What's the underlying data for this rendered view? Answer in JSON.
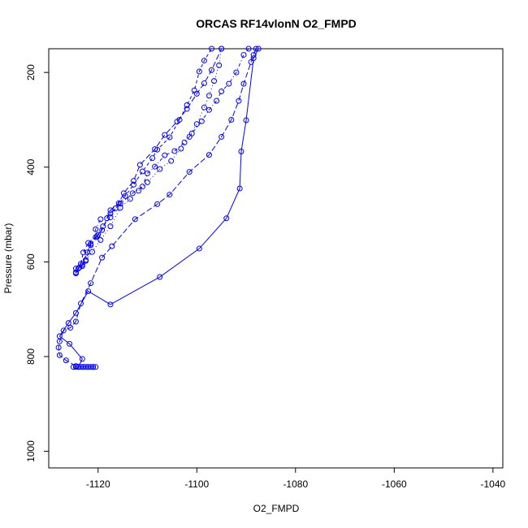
{
  "chart_data": {
    "type": "line",
    "title": "ORCAS RF14vlonN O2_FMPD",
    "xlabel": "O2_FMPD",
    "ylabel": "Pressure (mbar)",
    "xlim": [
      -1130,
      -1038
    ],
    "ylim": [
      1035,
      150
    ],
    "y_reversed": true,
    "x_ticks": [
      -1120,
      -1100,
      -1080,
      -1060,
      -1040
    ],
    "x_tick_labels": [
      "-1120",
      "-1100",
      "-1080",
      "-1060",
      "-1040"
    ],
    "y_ticks": [
      200,
      400,
      600,
      800,
      1000
    ],
    "y_tick_labels": [
      "200",
      "400",
      "600",
      "800",
      "1000"
    ],
    "grid": false,
    "legend": "none",
    "marker": "open-circle",
    "color": "#0000ff",
    "series": [
      {
        "line_style": "solid",
        "points": [
          [
            -1121,
            822
          ],
          [
            -1122,
            822
          ],
          [
            -1123,
            822
          ],
          [
            -1124,
            822
          ],
          [
            -1123.2,
            805
          ],
          [
            -1125.8,
            773
          ],
          [
            -1127.8,
            757
          ],
          [
            -1126,
            729
          ],
          [
            -1124.5,
            708
          ],
          [
            -1122,
            662
          ],
          [
            -1117.5,
            690
          ],
          [
            -1107.5,
            632
          ],
          [
            -1099.5,
            572
          ],
          [
            -1094,
            508
          ],
          [
            -1091.3,
            445
          ],
          [
            -1091,
            367
          ],
          [
            -1090,
            301
          ],
          [
            -1088.5,
            170
          ],
          [
            -1087.5,
            150
          ]
        ]
      },
      {
        "line_style": "longdash",
        "points": [
          [
            -1124.5,
            820
          ],
          [
            -1126.5,
            808
          ],
          [
            -1127.8,
            797
          ],
          [
            -1128,
            781
          ],
          [
            -1127.8,
            768
          ],
          [
            -1127,
            745
          ],
          [
            -1125.6,
            739
          ],
          [
            -1124.5,
            726
          ],
          [
            -1123.5,
            688
          ],
          [
            -1121.5,
            645
          ],
          [
            -1119.2,
            591
          ],
          [
            -1117.2,
            567
          ],
          [
            -1112.5,
            510
          ],
          [
            -1108,
            478
          ],
          [
            -1105.5,
            458
          ],
          [
            -1101.5,
            410
          ],
          [
            -1097.5,
            374
          ],
          [
            -1095,
            336
          ],
          [
            -1093,
            300
          ],
          [
            -1091.5,
            260
          ],
          [
            -1090.5,
            224
          ],
          [
            -1089,
            178
          ],
          [
            -1088.5,
            163
          ],
          [
            -1088,
            150
          ]
        ]
      },
      {
        "line_style": "dashdot",
        "points": [
          [
            -1124.5,
            624
          ],
          [
            -1123.8,
            612
          ],
          [
            -1122.5,
            598
          ],
          [
            -1121.5,
            565
          ],
          [
            -1120.5,
            548
          ],
          [
            -1120.5,
            531
          ],
          [
            -1119.5,
            510
          ],
          [
            -1117.5,
            498
          ],
          [
            -1115.5,
            477
          ],
          [
            -1113,
            455
          ],
          [
            -1111,
            441
          ],
          [
            -1110,
            413
          ],
          [
            -1108.5,
            399
          ],
          [
            -1106.5,
            375
          ],
          [
            -1104.5,
            366
          ],
          [
            -1102.5,
            348
          ],
          [
            -1101,
            329
          ],
          [
            -1099,
            303
          ],
          [
            -1097.5,
            279
          ],
          [
            -1096,
            260
          ],
          [
            -1095,
            240
          ],
          [
            -1093.5,
            224
          ],
          [
            -1092,
            200
          ],
          [
            -1090.5,
            163
          ],
          [
            -1089.5,
            150
          ]
        ]
      },
      {
        "line_style": "dotted",
        "points": [
          [
            -1124.5,
            622
          ],
          [
            -1123.2,
            609
          ],
          [
            -1122.5,
            596
          ],
          [
            -1121.2,
            579
          ],
          [
            -1119.5,
            554
          ],
          [
            -1117.5,
            525
          ],
          [
            -1115.5,
            486
          ],
          [
            -1113.5,
            467
          ],
          [
            -1111.8,
            450
          ],
          [
            -1110,
            432
          ],
          [
            -1107.5,
            404
          ],
          [
            -1105.2,
            387
          ],
          [
            -1103.2,
            361
          ],
          [
            -1101.5,
            336
          ],
          [
            -1100,
            309
          ],
          [
            -1098.5,
            274
          ],
          [
            -1097.5,
            249
          ],
          [
            -1096.5,
            218
          ],
          [
            -1095.5,
            185
          ],
          [
            -1095,
            150
          ]
        ]
      },
      {
        "line_style": "dashed",
        "points": [
          [
            -1124.5,
            624
          ],
          [
            -1124,
            614
          ],
          [
            -1123.5,
            604
          ],
          [
            -1123,
            580
          ],
          [
            -1122,
            560
          ],
          [
            -1120,
            543
          ],
          [
            -1119,
            525
          ],
          [
            -1117.5,
            506
          ],
          [
            -1116.5,
            487
          ],
          [
            -1114.5,
            461
          ],
          [
            -1112.8,
            437
          ],
          [
            -1111,
            409
          ],
          [
            -1109,
            381
          ],
          [
            -1108,
            363
          ],
          [
            -1105.5,
            337
          ],
          [
            -1103.5,
            300
          ],
          [
            -1102,
            269
          ],
          [
            -1100.5,
            238
          ],
          [
            -1099.5,
            198
          ],
          [
            -1098.5,
            175
          ],
          [
            -1097,
            150
          ]
        ]
      },
      {
        "line_style": "longdash",
        "points": [
          [
            -1124.5,
            624
          ],
          [
            -1124.5,
            614
          ],
          [
            -1123.2,
            606
          ],
          [
            -1122.2,
            580
          ],
          [
            -1121.5,
            562
          ],
          [
            -1120.2,
            546
          ],
          [
            -1119.2,
            533
          ],
          [
            -1118.2,
            508
          ],
          [
            -1117.5,
            491
          ],
          [
            -1115.8,
            476
          ],
          [
            -1114.8,
            455
          ],
          [
            -1112.8,
            429
          ],
          [
            -1111.5,
            395
          ],
          [
            -1108.5,
            362
          ],
          [
            -1106.5,
            332
          ],
          [
            -1104,
            304
          ],
          [
            -1102,
            277
          ],
          [
            -1100,
            245
          ],
          [
            -1098.5,
            223
          ],
          [
            -1097,
            195
          ],
          [
            -1095,
            150
          ]
        ]
      },
      {
        "line_style": "solid",
        "points": [
          [
            -1125,
            822
          ],
          [
            -1124.5,
            822
          ],
          [
            -1124,
            822
          ],
          [
            -1123.5,
            822
          ],
          [
            -1123,
            822
          ],
          [
            -1122.5,
            822
          ],
          [
            -1122,
            822
          ],
          [
            -1121.5,
            822
          ],
          [
            -1121,
            822
          ],
          [
            -1120.5,
            822
          ]
        ]
      }
    ]
  }
}
